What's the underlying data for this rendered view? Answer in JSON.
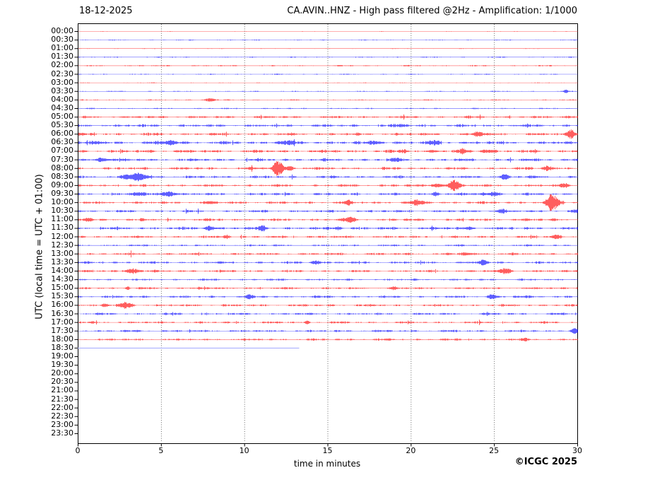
{
  "footer": {
    "copyright": "©ICGC 2025"
  },
  "chart_data": {
    "type": "line",
    "subtype": "helicorder-daily-seismogram",
    "date": "18-12-2025",
    "title": "CA.AVIN..HNZ - High pass filtered @2Hz - Amplification: 1/1000",
    "station": "CA.AVIN..HNZ",
    "filter": "High pass filtered @2Hz",
    "amplification": "1/1000",
    "xlabel": "time in minutes",
    "ylabel": "UTC (local time = UTC + 01:00)",
    "xlim": [
      0,
      30
    ],
    "xticks": [
      0,
      5,
      10,
      15,
      20,
      25,
      30
    ],
    "row_interval_minutes": 30,
    "grid": {
      "vertical": true,
      "style": "dotted",
      "minutes": [
        5,
        10,
        15,
        20,
        25
      ]
    },
    "colors": {
      "red_trace": "#ff0000",
      "blue_trace": "#0000ff",
      "incomplete_trace": "#aab0ff",
      "axis": "#000000",
      "grid": "#444444"
    },
    "rows": [
      {
        "label": "00:00",
        "color": "red",
        "noise": 0.25,
        "events": []
      },
      {
        "label": "00:30",
        "color": "blue",
        "noise": 0.4,
        "events": []
      },
      {
        "label": "01:00",
        "color": "red",
        "noise": 0.35,
        "events": []
      },
      {
        "label": "01:30",
        "color": "blue",
        "noise": 0.5,
        "events": []
      },
      {
        "label": "02:00",
        "color": "red",
        "noise": 0.6,
        "events": []
      },
      {
        "label": "02:30",
        "color": "blue",
        "noise": 0.45,
        "events": []
      },
      {
        "label": "03:00",
        "color": "red",
        "noise": 0.35,
        "events": []
      },
      {
        "label": "03:30",
        "color": "blue",
        "noise": 0.45,
        "events": [
          {
            "m": 29.3,
            "a": 2.2,
            "w": 0.12
          }
        ]
      },
      {
        "label": "04:00",
        "color": "red",
        "noise": 0.5,
        "events": [
          {
            "m": 7.9,
            "a": 2.4,
            "w": 0.3
          }
        ]
      },
      {
        "label": "04:30",
        "color": "blue",
        "noise": 0.55,
        "events": []
      },
      {
        "label": "05:00",
        "color": "red",
        "noise": 1.1,
        "events": [
          {
            "m": 29.4,
            "a": 1.8,
            "w": 0.25
          }
        ]
      },
      {
        "label": "05:30",
        "color": "blue",
        "noise": 1.2,
        "events": [
          {
            "m": 19.4,
            "a": 1.6,
            "w": 0.3
          }
        ]
      },
      {
        "label": "06:00",
        "color": "red",
        "noise": 1.25,
        "events": [
          {
            "m": 24.1,
            "a": 2.8,
            "w": 0.35
          },
          {
            "m": 29.6,
            "a": 5.5,
            "w": 0.3
          }
        ]
      },
      {
        "label": "06:30",
        "color": "blue",
        "noise": 1.4,
        "events": [
          {
            "m": 1.2,
            "a": 1.8,
            "w": 0.3
          },
          {
            "m": 5.6,
            "a": 2.6,
            "w": 0.45
          },
          {
            "m": 12.4,
            "a": 2.2,
            "w": 0.5
          },
          {
            "m": 17.9,
            "a": 2.8,
            "w": 0.3
          },
          {
            "m": 21.4,
            "a": 2.2,
            "w": 0.35
          }
        ]
      },
      {
        "label": "07:00",
        "color": "red",
        "noise": 1.3,
        "events": [
          {
            "m": 19.6,
            "a": 2.0,
            "w": 0.25
          },
          {
            "m": 21.4,
            "a": 2.0,
            "w": 0.2
          },
          {
            "m": 23.1,
            "a": 3.4,
            "w": 0.18
          },
          {
            "m": 24.6,
            "a": 2.4,
            "w": 0.35
          }
        ]
      },
      {
        "label": "07:30",
        "color": "blue",
        "noise": 1.25,
        "events": [
          {
            "m": 1.4,
            "a": 2.8,
            "w": 0.4
          },
          {
            "m": 19.1,
            "a": 2.0,
            "w": 0.25
          }
        ]
      },
      {
        "label": "08:00",
        "color": "red",
        "noise": 1.15,
        "events": [
          {
            "m": 12.0,
            "a": 10.5,
            "w": 0.3
          },
          {
            "m": 12.7,
            "a": 2.8,
            "w": 0.3
          },
          {
            "m": 28.2,
            "a": 3.8,
            "w": 0.3
          }
        ]
      },
      {
        "label": "08:30",
        "color": "blue",
        "noise": 1.15,
        "events": [
          {
            "m": 2.9,
            "a": 3.0,
            "w": 0.2
          },
          {
            "m": 3.6,
            "a": 6.5,
            "w": 0.4
          },
          {
            "m": 25.6,
            "a": 3.6,
            "w": 0.28
          }
        ]
      },
      {
        "label": "09:00",
        "color": "red",
        "noise": 1.1,
        "events": [
          {
            "m": 21.6,
            "a": 2.6,
            "w": 0.4
          },
          {
            "m": 22.6,
            "a": 8.5,
            "w": 0.3
          },
          {
            "m": 29.2,
            "a": 3.2,
            "w": 0.3
          }
        ]
      },
      {
        "label": "09:30",
        "color": "blue",
        "noise": 1.15,
        "events": [
          {
            "m": 3.6,
            "a": 2.2,
            "w": 0.4
          },
          {
            "m": 5.4,
            "a": 3.6,
            "w": 0.45
          },
          {
            "m": 21.5,
            "a": 2.8,
            "w": 0.22
          },
          {
            "m": 24.3,
            "a": 2.0,
            "w": 0.2
          },
          {
            "m": 25.0,
            "a": 3.2,
            "w": 0.28
          }
        ]
      },
      {
        "label": "10:00",
        "color": "red",
        "noise": 1.15,
        "events": [
          {
            "m": 8.0,
            "a": 1.8,
            "w": 0.2
          },
          {
            "m": 16.2,
            "a": 2.8,
            "w": 0.22
          },
          {
            "m": 20.4,
            "a": 2.6,
            "w": 0.5
          },
          {
            "m": 28.5,
            "a": 11.5,
            "w": 0.35
          }
        ]
      },
      {
        "label": "10:30",
        "color": "blue",
        "noise": 1.05,
        "events": [
          {
            "m": 25.4,
            "a": 2.8,
            "w": 0.3
          },
          {
            "m": 29.9,
            "a": 2.2,
            "w": 0.2
          }
        ]
      },
      {
        "label": "11:00",
        "color": "red",
        "noise": 1.15,
        "events": [
          {
            "m": 0.6,
            "a": 2.2,
            "w": 0.3
          },
          {
            "m": 16.3,
            "a": 3.2,
            "w": 0.35
          }
        ]
      },
      {
        "label": "11:30",
        "color": "blue",
        "noise": 1.25,
        "events": [
          {
            "m": 7.9,
            "a": 3.2,
            "w": 0.3
          },
          {
            "m": 11.1,
            "a": 3.2,
            "w": 0.28
          },
          {
            "m": 15.6,
            "a": 2.2,
            "w": 0.25
          },
          {
            "m": 23.5,
            "a": 2.0,
            "w": 0.2
          }
        ]
      },
      {
        "label": "12:00",
        "color": "red",
        "noise": 1.05,
        "events": [
          {
            "m": 8.9,
            "a": 2.8,
            "w": 0.22
          },
          {
            "m": 28.7,
            "a": 2.8,
            "w": 0.25
          }
        ]
      },
      {
        "label": "12:30",
        "color": "blue",
        "noise": 0.85,
        "events": []
      },
      {
        "label": "13:00",
        "color": "red",
        "noise": 1.05,
        "events": [
          {
            "m": 23.3,
            "a": 1.8,
            "w": 0.3
          }
        ]
      },
      {
        "label": "13:30",
        "color": "blue",
        "noise": 1.05,
        "events": [
          {
            "m": 14.3,
            "a": 2.8,
            "w": 0.3
          },
          {
            "m": 24.3,
            "a": 3.6,
            "w": 0.28
          }
        ]
      },
      {
        "label": "14:00",
        "color": "red",
        "noise": 1.05,
        "events": [
          {
            "m": 3.3,
            "a": 3.8,
            "w": 0.35
          },
          {
            "m": 25.7,
            "a": 4.5,
            "w": 0.3
          }
        ]
      },
      {
        "label": "14:30",
        "color": "blue",
        "noise": 0.85,
        "events": []
      },
      {
        "label": "15:00",
        "color": "red",
        "noise": 0.95,
        "events": [
          {
            "m": 3.0,
            "a": 2.2,
            "w": 0.12
          },
          {
            "m": 7.3,
            "a": 2.2,
            "w": 0.12
          },
          {
            "m": 19.0,
            "a": 1.8,
            "w": 0.2
          }
        ]
      },
      {
        "label": "15:30",
        "color": "blue",
        "noise": 1.05,
        "events": [
          {
            "m": 10.3,
            "a": 2.8,
            "w": 0.22
          },
          {
            "m": 24.9,
            "a": 3.2,
            "w": 0.28
          }
        ]
      },
      {
        "label": "16:00",
        "color": "red",
        "noise": 1.05,
        "events": [
          {
            "m": 1.6,
            "a": 2.2,
            "w": 0.2
          },
          {
            "m": 2.9,
            "a": 4.5,
            "w": 0.35
          }
        ]
      },
      {
        "label": "16:30",
        "color": "blue",
        "noise": 0.95,
        "events": []
      },
      {
        "label": "17:00",
        "color": "red",
        "noise": 0.95,
        "events": [
          {
            "m": 13.8,
            "a": 2.2,
            "w": 0.12
          }
        ]
      },
      {
        "label": "17:30",
        "color": "blue",
        "noise": 0.95,
        "events": [
          {
            "m": 29.8,
            "a": 3.6,
            "w": 0.22
          }
        ]
      },
      {
        "label": "18:00",
        "color": "red",
        "noise": 0.95,
        "events": [
          {
            "m": 26.9,
            "a": 1.8,
            "w": 0.18
          }
        ]
      },
      {
        "label": "18:30",
        "color": "blue",
        "noise": 0,
        "incomplete": true,
        "end_minute": 13.3,
        "events": []
      },
      {
        "label": "19:00",
        "color": "red",
        "no_data": true,
        "events": []
      },
      {
        "label": "19:30",
        "color": "blue",
        "no_data": true,
        "events": []
      },
      {
        "label": "20:00",
        "color": "red",
        "no_data": true,
        "events": []
      },
      {
        "label": "20:30",
        "color": "blue",
        "no_data": true,
        "events": []
      },
      {
        "label": "21:00",
        "color": "red",
        "no_data": true,
        "events": []
      },
      {
        "label": "21:30",
        "color": "blue",
        "no_data": true,
        "events": []
      },
      {
        "label": "22:00",
        "color": "red",
        "no_data": true,
        "events": []
      },
      {
        "label": "22:30",
        "color": "blue",
        "no_data": true,
        "events": []
      },
      {
        "label": "23:00",
        "color": "red",
        "no_data": true,
        "events": []
      },
      {
        "label": "23:30",
        "color": "blue",
        "no_data": true,
        "events": []
      }
    ]
  }
}
